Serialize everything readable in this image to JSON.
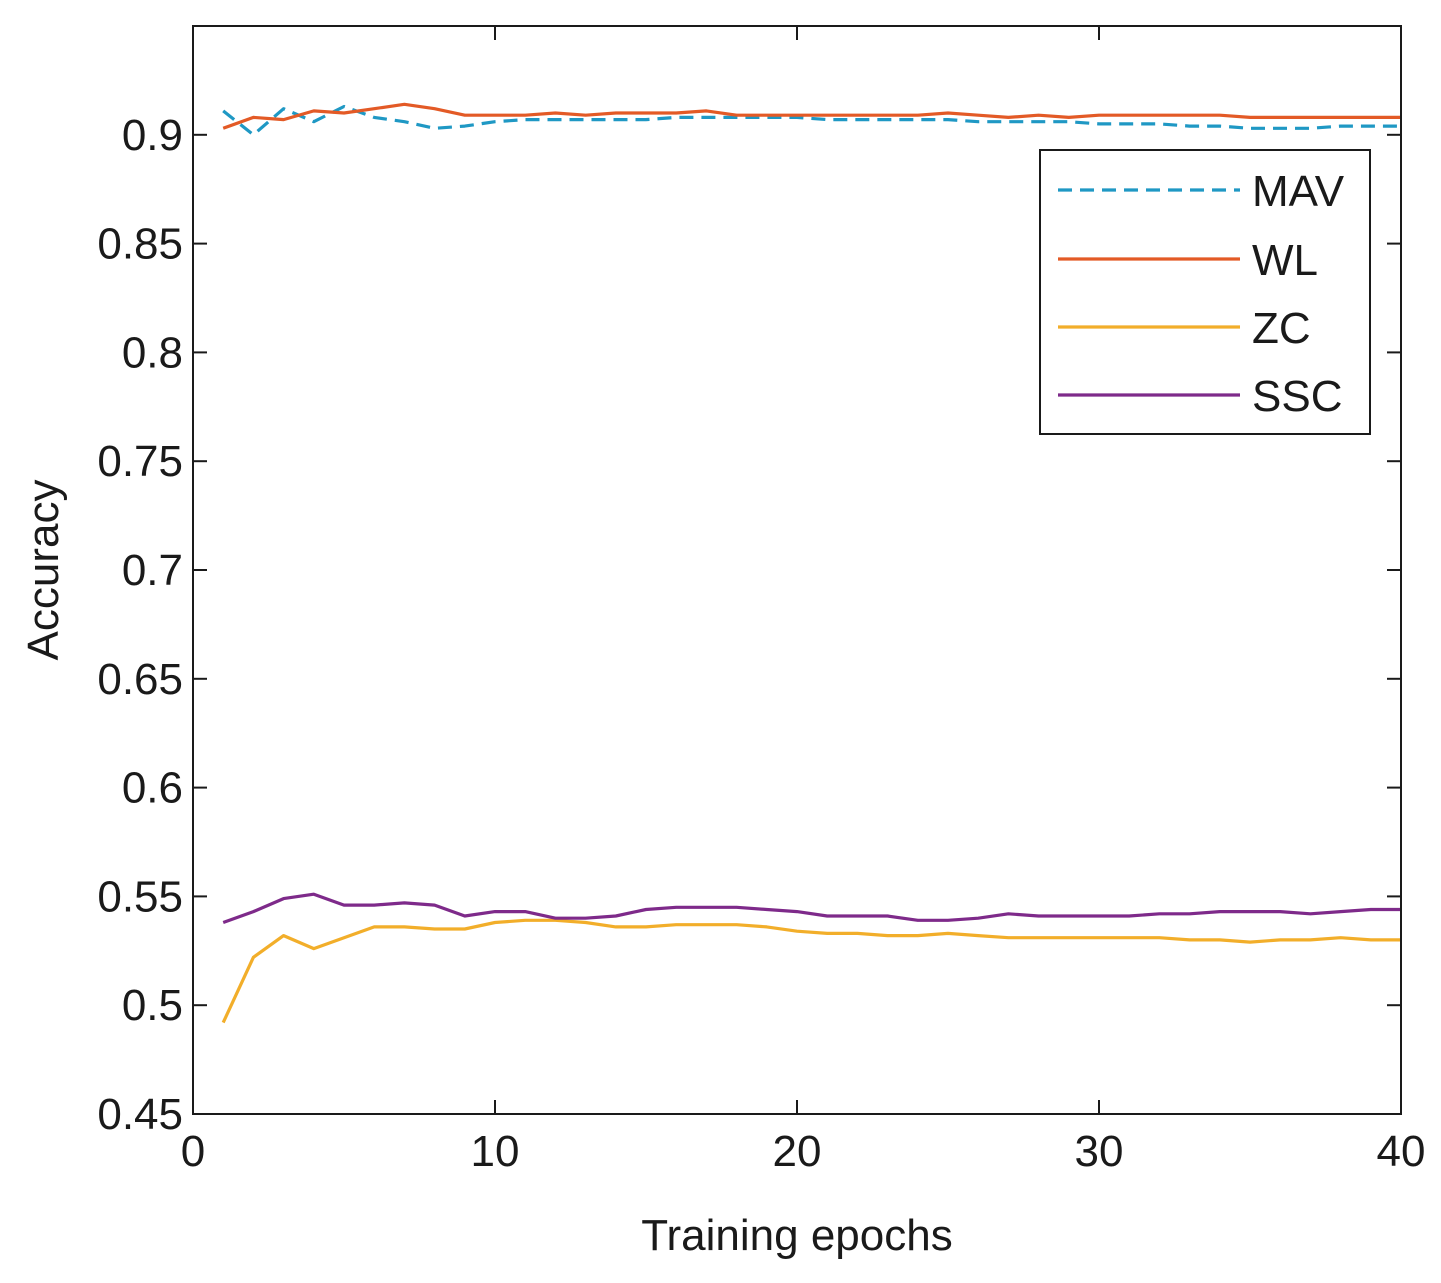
{
  "chart_data": {
    "type": "line",
    "title": "",
    "xlabel": "Training epochs",
    "ylabel": "Accuracy",
    "xlim": [
      0,
      40
    ],
    "ylim": [
      0.45,
      0.95
    ],
    "xticks": [
      0,
      10,
      20,
      30,
      40
    ],
    "xtick_labels": [
      "0",
      "10",
      "20",
      "30",
      "40"
    ],
    "yticks": [
      0.45,
      0.5,
      0.55,
      0.6,
      0.65,
      0.7,
      0.75,
      0.8,
      0.85,
      0.9
    ],
    "ytick_labels": [
      "0.45",
      "0.5",
      "0.55",
      "0.6",
      "0.65",
      "0.7",
      "0.75",
      "0.8",
      "0.85",
      "0.9"
    ],
    "grid": false,
    "legend_position": "top-right",
    "x": [
      1,
      2,
      3,
      4,
      5,
      6,
      7,
      8,
      9,
      10,
      11,
      12,
      13,
      14,
      15,
      16,
      17,
      18,
      19,
      20,
      21,
      22,
      23,
      24,
      25,
      26,
      27,
      28,
      29,
      30,
      31,
      32,
      33,
      34,
      35,
      36,
      37,
      38,
      39,
      40
    ],
    "series": [
      {
        "name": "MAV",
        "color": "#1f98c4",
        "style": "dashed",
        "values": [
          0.911,
          0.9,
          0.912,
          0.906,
          0.913,
          0.908,
          0.906,
          0.903,
          0.904,
          0.906,
          0.907,
          0.907,
          0.907,
          0.907,
          0.907,
          0.908,
          0.908,
          0.908,
          0.908,
          0.908,
          0.907,
          0.907,
          0.907,
          0.907,
          0.907,
          0.906,
          0.906,
          0.906,
          0.906,
          0.905,
          0.905,
          0.905,
          0.904,
          0.904,
          0.903,
          0.903,
          0.903,
          0.904,
          0.904,
          0.904
        ]
      },
      {
        "name": "WL",
        "color": "#e35a26",
        "style": "solid",
        "values": [
          0.903,
          0.908,
          0.907,
          0.911,
          0.91,
          0.912,
          0.914,
          0.912,
          0.909,
          0.909,
          0.909,
          0.91,
          0.909,
          0.91,
          0.91,
          0.91,
          0.911,
          0.909,
          0.909,
          0.909,
          0.909,
          0.909,
          0.909,
          0.909,
          0.91,
          0.909,
          0.908,
          0.909,
          0.908,
          0.909,
          0.909,
          0.909,
          0.909,
          0.909,
          0.908,
          0.908,
          0.908,
          0.908,
          0.908,
          0.908
        ]
      },
      {
        "name": "ZC",
        "color": "#f2ae2a",
        "style": "solid",
        "values": [
          0.492,
          0.522,
          0.532,
          0.526,
          0.531,
          0.536,
          0.536,
          0.535,
          0.535,
          0.538,
          0.539,
          0.539,
          0.538,
          0.536,
          0.536,
          0.537,
          0.537,
          0.537,
          0.536,
          0.534,
          0.533,
          0.533,
          0.532,
          0.532,
          0.533,
          0.532,
          0.531,
          0.531,
          0.531,
          0.531,
          0.531,
          0.531,
          0.53,
          0.53,
          0.529,
          0.53,
          0.53,
          0.531,
          0.53,
          0.53
        ]
      },
      {
        "name": "SSC",
        "color": "#7e2a8a",
        "style": "solid",
        "values": [
          0.538,
          0.543,
          0.549,
          0.551,
          0.546,
          0.546,
          0.547,
          0.546,
          0.541,
          0.543,
          0.543,
          0.54,
          0.54,
          0.541,
          0.544,
          0.545,
          0.545,
          0.545,
          0.544,
          0.543,
          0.541,
          0.541,
          0.541,
          0.539,
          0.539,
          0.54,
          0.542,
          0.541,
          0.541,
          0.541,
          0.541,
          0.542,
          0.542,
          0.543,
          0.543,
          0.543,
          0.542,
          0.543,
          0.544,
          0.544
        ]
      }
    ]
  }
}
